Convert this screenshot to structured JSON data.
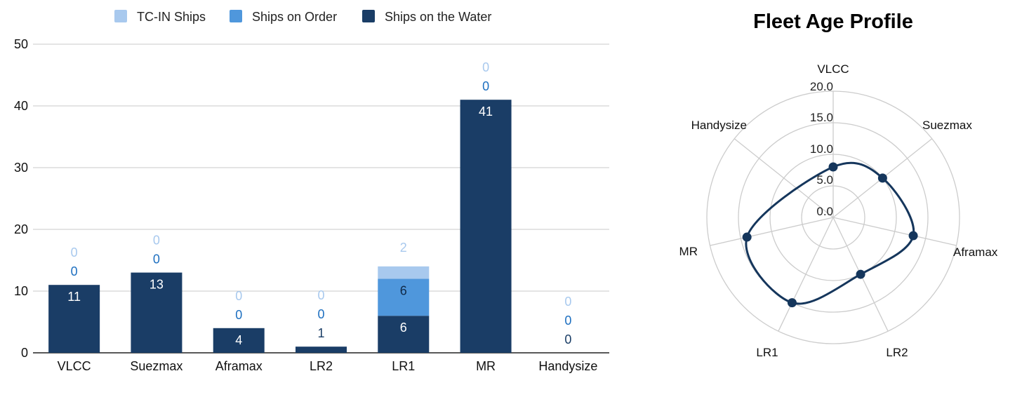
{
  "chart_data": [
    {
      "type": "bar",
      "stacked": true,
      "categories": [
        "VLCC",
        "Suezmax",
        "Aframax",
        "LR2",
        "LR1",
        "MR",
        "Handysize"
      ],
      "series": [
        {
          "name": "Ships on the Water",
          "color": "#1a3d66",
          "values": [
            11,
            13,
            4,
            1,
            6,
            41,
            0
          ]
        },
        {
          "name": "Ships on Order",
          "color": "#4f97dc",
          "values": [
            0,
            0,
            0,
            0,
            6,
            0,
            0
          ]
        },
        {
          "name": "TC-IN Ships",
          "color": "#a8c9ee",
          "values": [
            0,
            0,
            0,
            0,
            2,
            0,
            0
          ]
        }
      ],
      "legend_order": [
        "TC-IN Ships",
        "Ships on Order",
        "Ships on the Water"
      ],
      "legend_position": "top",
      "ylim": [
        0,
        50
      ],
      "yticks": [
        0,
        10,
        20,
        30,
        40,
        50
      ],
      "grid": true,
      "data_labels": true
    },
    {
      "type": "radar",
      "title": "Fleet Age Profile",
      "axes": [
        "VLCC",
        "Suezmax",
        "Aframax",
        "LR2",
        "LR1",
        "MR",
        "Handysize"
      ],
      "rlim": [
        0,
        20
      ],
      "rticks": [
        "0.0",
        "5.0",
        "10.0",
        "15.0",
        "20.0"
      ],
      "series": [
        {
          "color": "#15365c",
          "values": [
            8,
            10,
            13,
            10,
            15,
            14,
            null
          ]
        }
      ]
    }
  ]
}
